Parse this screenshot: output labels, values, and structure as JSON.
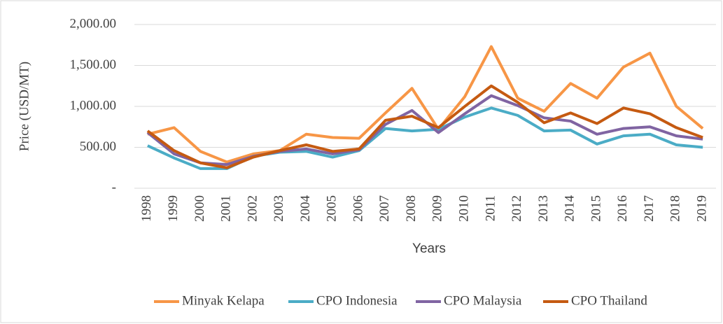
{
  "chart_data": {
    "type": "line",
    "x_label": "Years",
    "y_label": "Price (USD/MT)",
    "categories": [
      "1998",
      "1999",
      "2000",
      "2001",
      "2002",
      "2003",
      "2004",
      "2005",
      "2006",
      "2007",
      "2008",
      "2009",
      "2010",
      "2011",
      "2012",
      "2013",
      "2014",
      "2015",
      "2016",
      "2017",
      "2018",
      "2019"
    ],
    "series": [
      {
        "name": "Minyak Kelapa",
        "color": "#f79646",
        "values": [
          660,
          740,
          450,
          320,
          420,
          460,
          660,
          620,
          610,
          920,
          1220,
          720,
          1120,
          1730,
          1100,
          940,
          1280,
          1100,
          1480,
          1650,
          1000,
          730
        ]
      },
      {
        "name": "CPO Indonesia",
        "color": "#4bacc6",
        "values": [
          520,
          370,
          240,
          240,
          390,
          440,
          450,
          380,
          460,
          730,
          700,
          720,
          870,
          980,
          890,
          700,
          710,
          540,
          640,
          660,
          530,
          500
        ]
      },
      {
        "name": "CPO Malaysia",
        "color": "#8064a2",
        "values": [
          680,
          420,
          310,
          290,
          390,
          450,
          480,
          420,
          470,
          780,
          950,
          680,
          910,
          1130,
          1010,
          860,
          820,
          660,
          730,
          750,
          640,
          600
        ]
      },
      {
        "name": "CPO Thailand",
        "color": "#c55a11",
        "values": [
          700,
          460,
          310,
          250,
          380,
          460,
          530,
          450,
          480,
          830,
          880,
          740,
          1000,
          1250,
          1050,
          800,
          920,
          790,
          980,
          910,
          740,
          620
        ]
      }
    ],
    "ylim": [
      0,
      2000
    ],
    "yticks": [
      {
        "value": 0,
        "label": "-"
      },
      {
        "value": 500,
        "label": "500.00"
      },
      {
        "value": 1000,
        "label": "1,000.00"
      },
      {
        "value": 1500,
        "label": "1,500.00"
      },
      {
        "value": 2000,
        "label": "2,000.00"
      }
    ],
    "grid": true,
    "legend": "bottom"
  }
}
